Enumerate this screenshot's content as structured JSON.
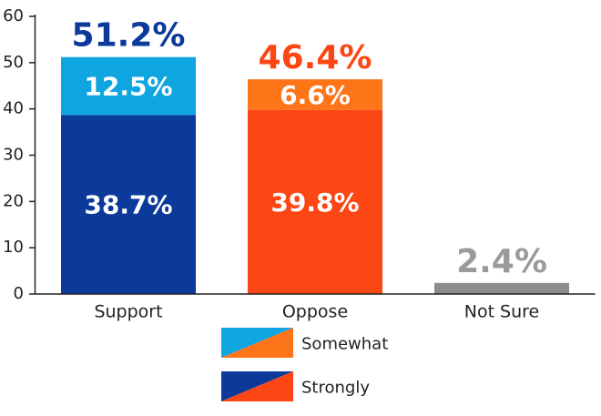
{
  "chart_data": {
    "type": "bar",
    "stacked": true,
    "categories": [
      "Support",
      "Oppose",
      "Not Sure"
    ],
    "series": [
      {
        "name": "Strongly",
        "colors": [
          "#0b3a9b",
          "#fc4614",
          "#8c8c8c"
        ],
        "values": [
          38.7,
          39.8,
          null
        ],
        "value_labels": [
          "38.7%",
          "39.8%",
          null
        ]
      },
      {
        "name": "Somewhat",
        "colors": [
          "#0ea5e1",
          "#fd7419",
          "#8c8c8c"
        ],
        "values": [
          12.5,
          6.6,
          null
        ],
        "value_labels": [
          "12.5%",
          "6.6%",
          null
        ]
      },
      {
        "colors": [
          "#8c8c8c",
          "#8c8c8c",
          "#8c8c8c"
        ],
        "values": [
          null,
          null,
          2.4
        ]
      }
    ],
    "totals": {
      "values": [
        51.2,
        46.4,
        2.4
      ],
      "value_labels": [
        "51.2%",
        "46.4%",
        "2.4%"
      ],
      "colors": [
        "#0b3a9b",
        "#fc4614",
        "#9a9a9a"
      ]
    },
    "ylim": [
      0,
      60
    ],
    "yticks": [
      0,
      10,
      20,
      30,
      40,
      50,
      60
    ],
    "grid": false
  }
}
